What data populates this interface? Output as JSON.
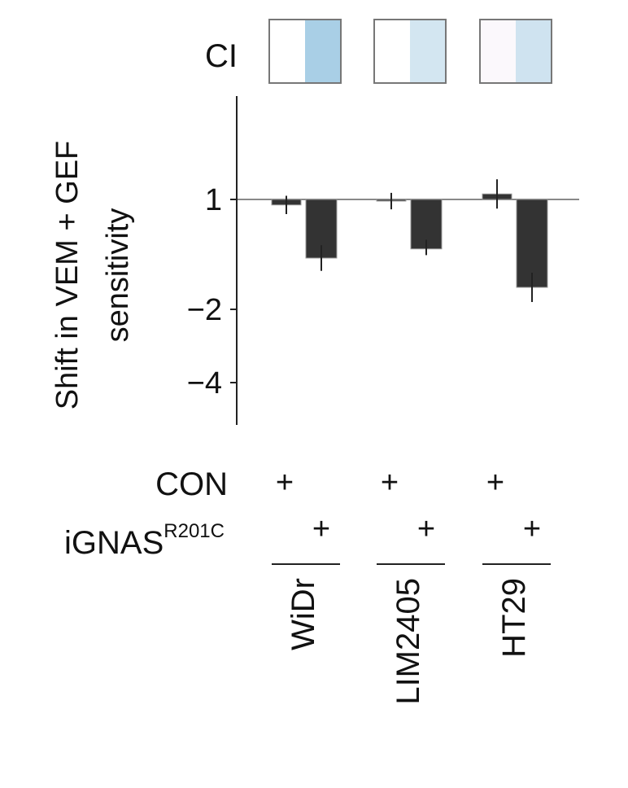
{
  "chart_data": {
    "type": "bar",
    "ylabel_line1": "Shift in VEM + GEF",
    "ylabel_line2": "sensitivity",
    "yticks": [
      {
        "value": 1,
        "label": "1"
      },
      {
        "value": -2,
        "label": "−2"
      },
      {
        "value": -4,
        "label": "−4"
      }
    ],
    "reference_line": 1,
    "ylim": [
      -4.1,
      2.9
    ],
    "ci_label": "CI",
    "row_labels": {
      "con": "CON",
      "ignas": "iGNAS",
      "ignas_superscript": "R201C"
    },
    "plus_sign": "+",
    "groups": [
      {
        "cell_line": "WiDr",
        "con": {
          "value": 0.85,
          "err_low": 0.6,
          "err_high": 1.1
        },
        "ignas": {
          "value": -0.6,
          "err_low": -0.95,
          "err_high": -0.25
        },
        "ci_colors": [
          "#ffffff",
          "#a9cfe6"
        ]
      },
      {
        "cell_line": "LIM2405",
        "con": {
          "value": 0.98,
          "err_low": 0.73,
          "err_high": 1.18
        },
        "ignas": {
          "value": -0.35,
          "err_low": -0.52,
          "err_high": -0.1
        },
        "ci_colors": [
          "#ffffff",
          "#d3e6f1"
        ]
      },
      {
        "cell_line": "HT29",
        "con": {
          "value": 1.15,
          "err_low": 0.75,
          "err_high": 1.55
        },
        "ignas": {
          "value": -1.4,
          "err_low": -1.8,
          "err_high": -1.0
        },
        "ci_colors": [
          "#fbf8fc",
          "#cfe3f0"
        ]
      }
    ],
    "colors": {
      "bar": "#333333",
      "bar_edge": "#9a9a9a",
      "axis": "#222222",
      "reference_line": "#888888",
      "ci_border": "#777777"
    }
  }
}
